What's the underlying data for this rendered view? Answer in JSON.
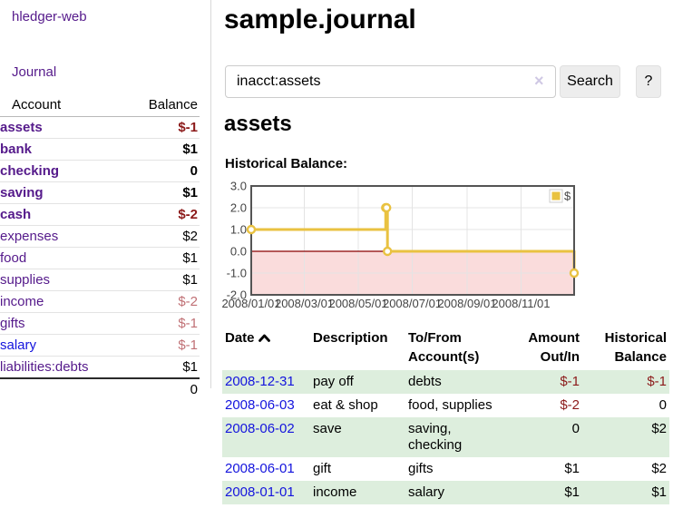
{
  "sidebar": {
    "brand": "hledger-web",
    "journal_link": "Journal",
    "accounts": {
      "headers": {
        "account": "Account",
        "balance": "Balance"
      },
      "rows": [
        {
          "account": "assets",
          "balance": "$-1"
        },
        {
          "account": "bank",
          "balance": "$1"
        },
        {
          "account": "checking",
          "balance": "0"
        },
        {
          "account": "saving",
          "balance": "$1"
        },
        {
          "account": "cash",
          "balance": "$-2"
        },
        {
          "account": "expenses",
          "balance": "$2"
        },
        {
          "account": "food",
          "balance": "$1"
        },
        {
          "account": "supplies",
          "balance": "$1"
        },
        {
          "account": "income",
          "balance": "$-2"
        },
        {
          "account": "gifts",
          "balance": "$-1"
        },
        {
          "account": "salary",
          "balance": "$-1"
        },
        {
          "account": "liabilities:debts",
          "balance": "$1"
        }
      ],
      "total": "0"
    }
  },
  "header": {
    "title": "sample.journal"
  },
  "search": {
    "value": "inacct:assets",
    "clear_icon": "×",
    "button_label": "Search",
    "help_label": "?"
  },
  "account_page": {
    "title": "assets"
  },
  "chart_data": {
    "type": "line",
    "step": true,
    "title": "Historical Balance:",
    "series": [
      {
        "name": "$",
        "points": [
          [
            "2008-01-01",
            1
          ],
          [
            "2008-06-01",
            2
          ],
          [
            "2008-06-02",
            2
          ],
          [
            "2008-06-03",
            0
          ],
          [
            "2008-12-31",
            -1
          ]
        ]
      }
    ],
    "xrange": [
      "2008-01-01",
      "2008-12-31"
    ],
    "ylim": [
      -2,
      3
    ],
    "yticks": [
      "3.0",
      "2.0",
      "1.0",
      "0.0",
      "-1.0",
      "-2.0"
    ],
    "xticks": [
      {
        "date": "2008-01-01",
        "label": "2008/01/01"
      },
      {
        "date": "2008-03-01",
        "label": "2008/03/01"
      },
      {
        "date": "2008-05-01",
        "label": "2008/05/01"
      },
      {
        "date": "2008-07-01",
        "label": "2008/07/01"
      },
      {
        "date": "2008-09-01",
        "label": "2008/09/01"
      },
      {
        "date": "2008-11-01",
        "label": "2008/11/01"
      }
    ],
    "legend": {
      "position": "top-right",
      "label": "$"
    },
    "grid": true,
    "colors": {
      "line": "#e9c241",
      "marker_fill": "#ffffff",
      "negative_region": "#fadcdc",
      "zero_line": "#8b0000",
      "grid": "#e4e4e4",
      "border": "#545454",
      "tick_text": "#444444"
    }
  },
  "register": {
    "headers": {
      "date": "Date",
      "description": "Description",
      "account": "To/From Account(s)",
      "amount": "Amount Out/In",
      "balance": "Historical Balance"
    },
    "rows": [
      {
        "date": "2008-12-31",
        "description": "pay off",
        "account": "debts",
        "amount": "$-1",
        "balance": "$-1"
      },
      {
        "date": "2008-06-03",
        "description": "eat & shop",
        "account": "food, supplies",
        "amount": "$-2",
        "balance": "0"
      },
      {
        "date": "2008-06-02",
        "description": "save",
        "account": "saving, checking",
        "amount": "0",
        "balance": "$2"
      },
      {
        "date": "2008-06-01",
        "description": "gift",
        "account": "gifts",
        "amount": "$1",
        "balance": "$2"
      },
      {
        "date": "2008-01-01",
        "description": "income",
        "account": "salary",
        "amount": "$1",
        "balance": "$1"
      }
    ]
  }
}
